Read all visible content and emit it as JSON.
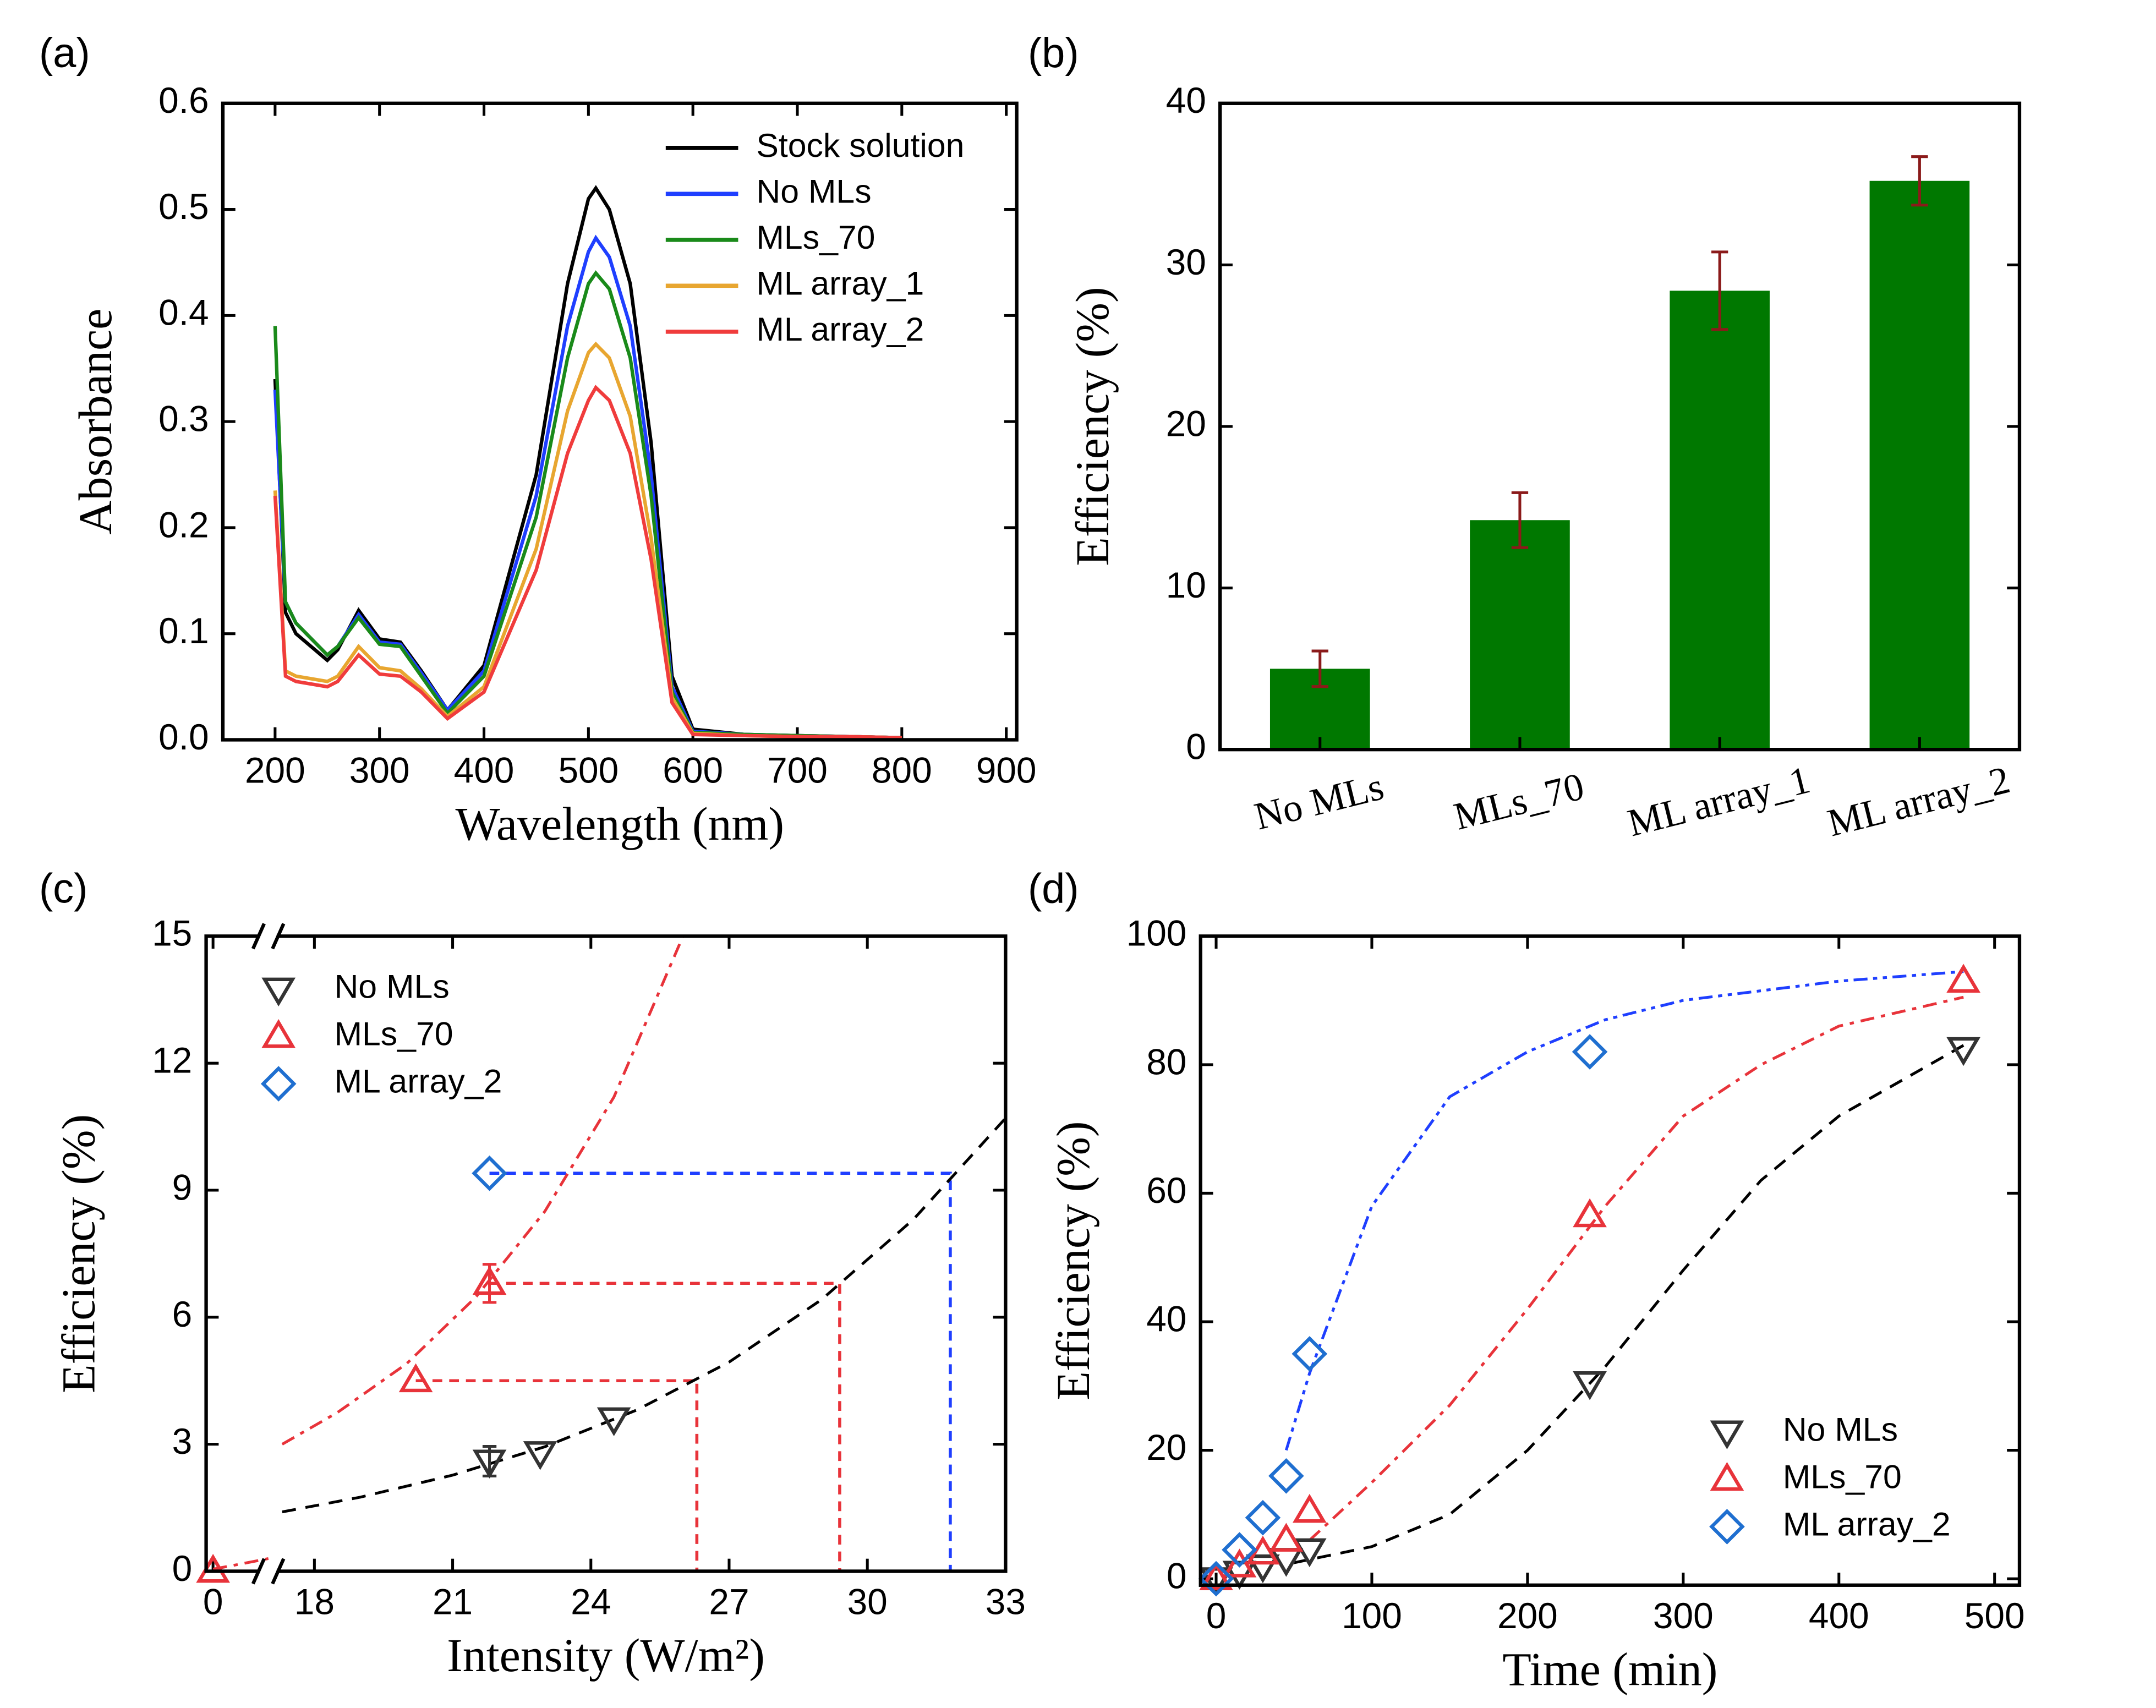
{
  "chart_data": [
    {
      "type": "line",
      "label": "(a)",
      "xlabel": "Wavelength (nm)",
      "ylabel": "Absorbance",
      "legend": "upper right",
      "xlim": [
        150,
        910
      ],
      "xticks": [
        200,
        300,
        400,
        500,
        600,
        700,
        800,
        900
      ],
      "ylim": [
        0,
        0.6
      ],
      "yticks": [
        {
          "value": 0,
          "label": "0.0"
        },
        0.1,
        0.2,
        0.3,
        0.4,
        0.5,
        0.6
      ],
      "x": [
        200,
        210,
        220,
        250,
        260,
        280,
        300,
        320,
        340,
        365,
        400,
        450,
        480,
        500,
        507,
        520,
        540,
        560,
        580,
        600,
        650,
        700,
        750,
        800
      ],
      "series": [
        {
          "name": "Stock solution",
          "color": "#000000",
          "values": [
            0.34,
            0.12,
            0.1,
            0.075,
            0.085,
            0.122,
            0.095,
            0.092,
            0.065,
            0.028,
            0.07,
            0.25,
            0.43,
            0.51,
            0.52,
            0.5,
            0.43,
            0.28,
            0.06,
            0.01,
            0.005,
            0.004,
            0.003,
            0.002
          ]
        },
        {
          "name": "No MLs",
          "color": "#1f3fff",
          "values": [
            0.33,
            0.13,
            0.11,
            0.08,
            0.088,
            0.118,
            0.092,
            0.09,
            0.063,
            0.028,
            0.065,
            0.23,
            0.39,
            0.46,
            0.473,
            0.455,
            0.39,
            0.25,
            0.05,
            0.008,
            0.005,
            0.004,
            0.003,
            0.002
          ]
        },
        {
          "name": "MLs_70",
          "color": "#1a8a1a",
          "values": [
            0.39,
            0.13,
            0.11,
            0.08,
            0.088,
            0.115,
            0.09,
            0.088,
            0.06,
            0.025,
            0.06,
            0.21,
            0.36,
            0.43,
            0.44,
            0.425,
            0.36,
            0.23,
            0.045,
            0.007,
            0.005,
            0.004,
            0.003,
            0.002
          ]
        },
        {
          "name": "ML array_1",
          "color": "#e8a630",
          "values": [
            0.235,
            0.065,
            0.06,
            0.055,
            0.06,
            0.088,
            0.068,
            0.065,
            0.048,
            0.022,
            0.05,
            0.18,
            0.31,
            0.365,
            0.373,
            0.36,
            0.305,
            0.19,
            0.04,
            0.006,
            0.004,
            0.003,
            0.003,
            0.002
          ]
        },
        {
          "name": "ML array_2",
          "color": "#f03c3c",
          "values": [
            0.23,
            0.06,
            0.055,
            0.05,
            0.055,
            0.08,
            0.062,
            0.06,
            0.045,
            0.02,
            0.045,
            0.16,
            0.27,
            0.32,
            0.332,
            0.32,
            0.27,
            0.17,
            0.035,
            0.005,
            0.004,
            0.003,
            0.003,
            0.002
          ]
        }
      ]
    },
    {
      "type": "bar",
      "label": "(b)",
      "ylabel": "Efficiency (%)",
      "ylim": [
        0,
        40
      ],
      "yticks": [
        0,
        10,
        20,
        30,
        40
      ],
      "categories": [
        "No MLs",
        "MLs_70",
        "ML array_1",
        "ML array_2"
      ],
      "values": [
        5,
        14.2,
        28.4,
        35.2
      ],
      "errors": [
        1.1,
        1.7,
        2.4,
        1.5
      ],
      "color": "#007800",
      "error_color": "#8b1a1a"
    },
    {
      "type": "scatter",
      "label": "(c)",
      "xlabel": "Intensity (W/m²)",
      "ylabel": "Efficiency (%)",
      "legend": "upper left",
      "xlim": [
        -0.15,
        33
      ],
      "xbreak": [
        1.2,
        17
      ],
      "xticks": [
        0,
        18,
        21,
        24,
        27,
        30,
        33
      ],
      "ylim": [
        0,
        15
      ],
      "yticks": [
        0,
        3,
        6,
        9,
        12,
        15
      ],
      "series": [
        {
          "name": "No MLs",
          "color": "#333333",
          "marker": "triangle-down",
          "x": [
            21.8,
            22.9,
            24.5
          ],
          "values": [
            2.6,
            2.8,
            3.6
          ],
          "errors": [
            0.35,
            null,
            null
          ]
        },
        {
          "name": "MLs_70",
          "color": "#e8333a",
          "marker": "triangle-up",
          "x": [
            0,
            20.2,
            21.8
          ],
          "values": [
            0,
            4.5,
            6.8
          ],
          "errors": [
            null,
            null,
            0.45
          ]
        },
        {
          "name": "ML array_2",
          "color": "#1f6fd0",
          "marker": "diamond",
          "x": [
            21.8
          ],
          "values": [
            9.4
          ],
          "errors": [
            null
          ]
        }
      ],
      "fit_lines": [
        {
          "color": "#000000",
          "dash": "10 7",
          "x": [
            17.3,
            19,
            21,
            23,
            25,
            27,
            29,
            31,
            33
          ],
          "values": [
            1.4,
            1.75,
            2.27,
            2.94,
            3.81,
            4.94,
            6.41,
            8.31,
            10.7
          ]
        },
        {
          "color": "#e8333a",
          "dash": "10 5 3 5",
          "x": [
            17.3,
            18.5,
            20,
            21.5,
            23,
            24.5,
            26
          ],
          "values": [
            3.0,
            3.75,
            4.9,
            6.47,
            8.5,
            11.2,
            15
          ]
        },
        {
          "color": "#e8333a",
          "dash": "10 5 3 5",
          "x": [
            0,
            0.6,
            1.2
          ],
          "values": [
            0.05,
            0.17,
            0.3
          ]
        }
      ],
      "guides": [
        {
          "color": "#e8333a",
          "x0": 20.2,
          "x1": 26.3,
          "y": 4.5
        },
        {
          "color": "#e8333a",
          "x0": 21.8,
          "x1": 29.4,
          "y": 6.8
        },
        {
          "color": "#1f3fff",
          "x0": 21.8,
          "x1": 31.8,
          "y": 9.4
        }
      ]
    },
    {
      "type": "scatter",
      "label": "(d)",
      "xlabel": "Time (min)",
      "ylabel": "Efficiency (%)",
      "legend": "lower right",
      "xlim": [
        -10,
        516
      ],
      "xticks": [
        0,
        100,
        200,
        300,
        400,
        500
      ],
      "ylim": [
        -1,
        100
      ],
      "yticks": [
        0,
        20,
        40,
        60,
        80,
        100
      ],
      "series": [
        {
          "name": "No MLs",
          "color": "#333333",
          "marker": "triangle-down",
          "x": [
            0,
            15,
            30,
            45,
            60,
            240,
            480
          ],
          "values": [
            0,
            1,
            2,
            3,
            4.5,
            30.5,
            82.5
          ]
        },
        {
          "name": "MLs_70",
          "color": "#e8333a",
          "marker": "triangle-up",
          "x": [
            0,
            15,
            30,
            45,
            60,
            240,
            480
          ],
          "values": [
            0,
            2,
            4,
            6,
            10.5,
            56.5,
            93
          ]
        },
        {
          "name": "ML array_2",
          "color": "#1f6fd0",
          "marker": "diamond",
          "x": [
            0,
            15,
            30,
            45,
            60,
            240
          ],
          "values": [
            0,
            4.5,
            9.5,
            16,
            35,
            82
          ]
        }
      ],
      "fit_lines": [
        {
          "color": "#000000",
          "dash": "10 7",
          "x": [
            50,
            100,
            150,
            200,
            250,
            300,
            350,
            400,
            480
          ],
          "values": [
            2.5,
            5,
            10,
            20,
            33,
            48,
            62,
            72,
            83
          ]
        },
        {
          "color": "#e8333a",
          "dash": "10 5 3 5",
          "x": [
            60,
            100,
            150,
            200,
            250,
            300,
            350,
            400,
            480
          ],
          "values": [
            6,
            15,
            27,
            42,
            58,
            72,
            80,
            86,
            90.5
          ]
        },
        {
          "color": "#1f3fff",
          "dash": "10 4 3 4 3 4",
          "x": [
            45,
            60,
            100,
            150,
            200,
            250,
            300,
            400,
            480
          ],
          "values": [
            20,
            32,
            58,
            75,
            82,
            87,
            90,
            93,
            94.5
          ]
        }
      ]
    }
  ]
}
